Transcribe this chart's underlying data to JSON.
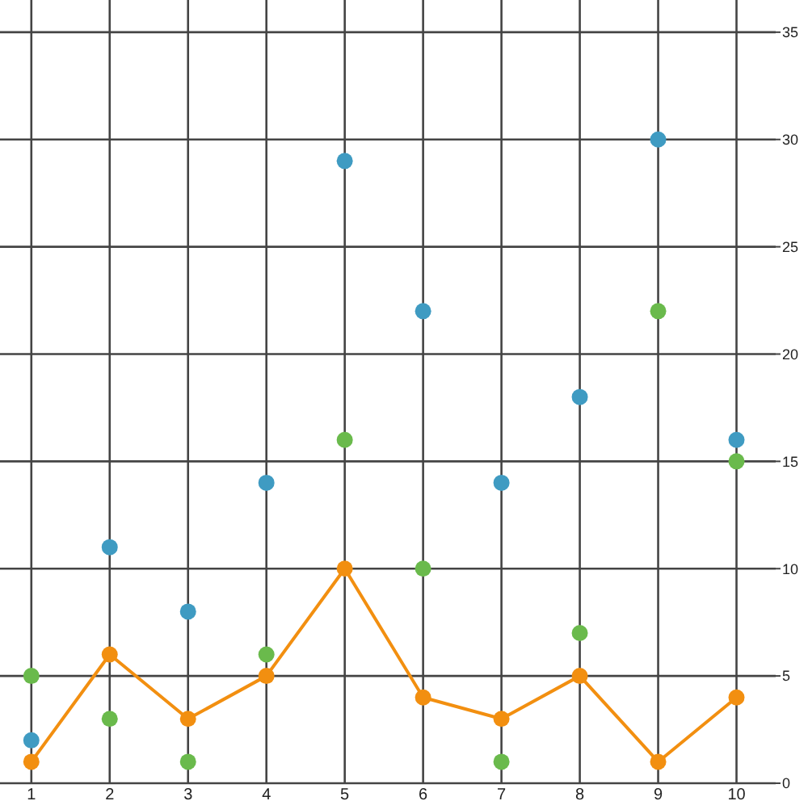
{
  "chart_data": {
    "type": "scatter",
    "x": [
      1,
      2,
      3,
      4,
      5,
      6,
      7,
      8,
      9,
      10
    ],
    "series": [
      {
        "color": "#3f9bc2",
        "values": [
          2,
          11,
          8,
          14,
          29,
          22,
          14,
          18,
          30,
          16
        ]
      },
      {
        "color": "#6aba4c",
        "values": [
          5,
          3,
          1,
          6,
          16,
          10,
          1,
          7,
          22,
          15
        ]
      },
      {
        "type": "line",
        "color": "#f28f10",
        "values": [
          1,
          6,
          3,
          5,
          10,
          4,
          3,
          5,
          1,
          4
        ]
      }
    ],
    "xlim": [
      0.6,
      10.5
    ],
    "xticks": [
      1,
      2,
      3,
      4,
      5,
      6,
      7,
      8,
      9,
      10
    ],
    "ylim": [
      0,
      36.5
    ],
    "yticks": [
      0,
      5,
      10,
      15,
      20,
      25,
      30,
      35
    ],
    "grid": true,
    "marker": "circle"
  }
}
